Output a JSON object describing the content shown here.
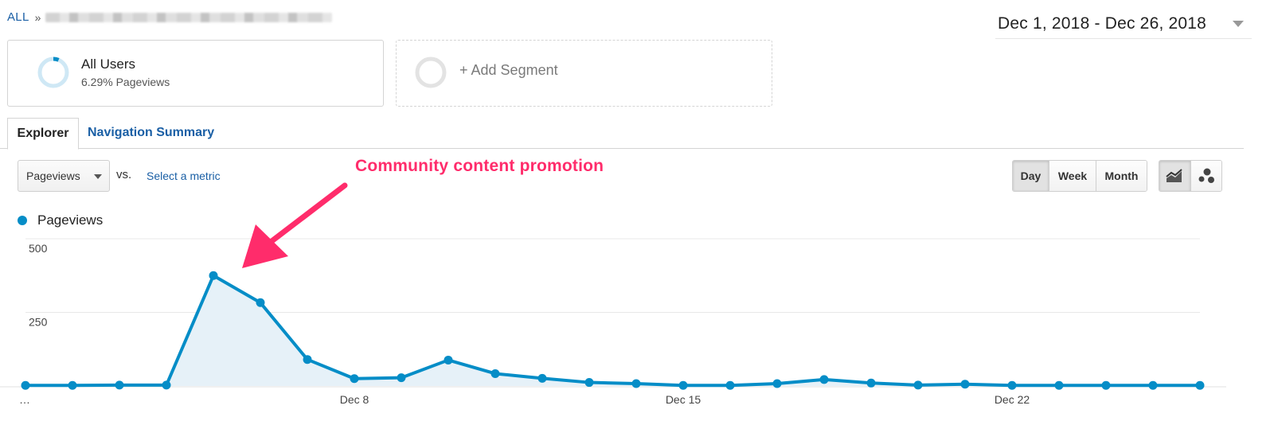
{
  "breadcrumb": {
    "root": "ALL",
    "separator": "»"
  },
  "date_range": {
    "label": "Dec 1, 2018 - Dec 26, 2018"
  },
  "segments": {
    "active": {
      "name": "All Users",
      "subtitle": "6.29% Pageviews",
      "share_percent": 6.29
    },
    "add_label": "+ Add Segment"
  },
  "tabs": [
    {
      "label": "Explorer",
      "active": true
    },
    {
      "label": "Navigation Summary",
      "active": false
    }
  ],
  "controls": {
    "metric": "Pageviews",
    "vs": "vs.",
    "select_metric": "Select a metric",
    "periods": [
      {
        "label": "Day",
        "active": true
      },
      {
        "label": "Week",
        "active": false
      },
      {
        "label": "Month",
        "active": false
      }
    ],
    "chart_types": [
      {
        "icon": "line-chart-icon",
        "active": true
      },
      {
        "icon": "motion-chart-icon",
        "active": false
      }
    ]
  },
  "annotation": {
    "text": "Community content promotion",
    "color": "#ff2c6b"
  },
  "colors": {
    "series": "#058dc7",
    "area": "#e6f1f8",
    "link": "#1a5fa5"
  },
  "chart_data": {
    "type": "area",
    "legend": [
      "Pageviews"
    ],
    "x": [
      "Dec 1",
      "Dec 2",
      "Dec 3",
      "Dec 4",
      "Dec 5",
      "Dec 6",
      "Dec 7",
      "Dec 8",
      "Dec 9",
      "Dec 10",
      "Dec 11",
      "Dec 12",
      "Dec 13",
      "Dec 14",
      "Dec 15",
      "Dec 16",
      "Dec 17",
      "Dec 18",
      "Dec 19",
      "Dec 20",
      "Dec 21",
      "Dec 22",
      "Dec 23",
      "Dec 24",
      "Dec 25",
      "Dec 26"
    ],
    "x_tick_labels": [
      "…",
      "Dec 8",
      "Dec 15",
      "Dec 22"
    ],
    "x_tick_indices": [
      0,
      7,
      14,
      21
    ],
    "series": [
      {
        "name": "Pageviews",
        "values": [
          2,
          2,
          3,
          3,
          375,
          283,
          90,
          25,
          28,
          88,
          42,
          26,
          12,
          8,
          2,
          2,
          8,
          22,
          10,
          3,
          6,
          2,
          2,
          2,
          2,
          2
        ]
      }
    ],
    "y_ticks": [
      250,
      500
    ],
    "ylim": [
      0,
      500
    ],
    "grid": true
  }
}
